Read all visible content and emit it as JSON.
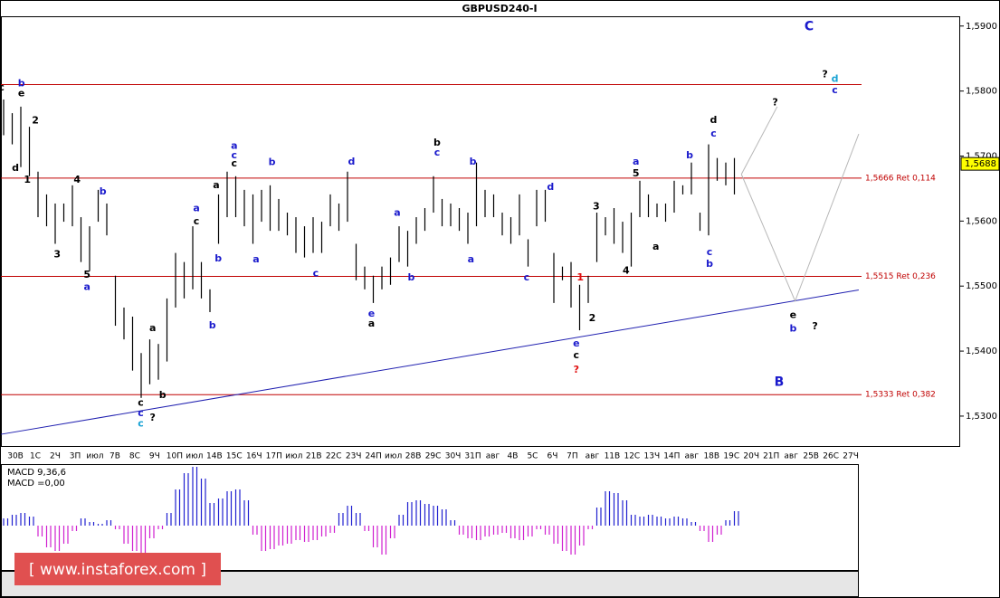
{
  "chart_data": {
    "type": "ohlc",
    "title": "GBPUSD240-I",
    "ylim": [
      1.5254,
      1.5915
    ],
    "yticks": [
      {
        "value": 1.53,
        "label": "1,5300"
      },
      {
        "value": 1.54,
        "label": "1,5400"
      },
      {
        "value": 1.55,
        "label": "1,5500"
      },
      {
        "value": 1.56,
        "label": "1,5600"
      },
      {
        "value": 1.57,
        "label": "1,5700"
      },
      {
        "value": 1.58,
        "label": "1,5800"
      },
      {
        "value": 1.59,
        "label": "1,5900"
      }
    ],
    "xlim": [
      -0.73,
      47.5
    ],
    "categories": [
      "30В",
      "1С",
      "2Ч",
      "3П",
      "июл",
      "7В",
      "8С",
      "9Ч",
      "10П",
      "июл",
      "14В",
      "15С",
      "16Ч",
      "17П",
      "июл",
      "21В",
      "22С",
      "23Ч",
      "24П",
      "июл",
      "28В",
      "29С",
      "30Ч",
      "31П",
      "авг",
      "4В",
      "5С",
      "6Ч",
      "7П",
      "авг",
      "11В",
      "12С",
      "13Ч",
      "14П",
      "авг",
      "18В",
      "19С",
      "20Ч",
      "21П",
      "авг",
      "25В",
      "26С",
      "27Ч"
    ],
    "bar_color": "#000000",
    "price_bars": [
      [
        1.5787,
        1.5732
      ],
      [
        1.5766,
        1.5718
      ],
      [
        1.5776,
        1.5683
      ],
      [
        1.5745,
        1.5669
      ],
      [
        1.5676,
        1.5606
      ],
      [
        1.5641,
        1.5592
      ],
      [
        1.5627,
        1.5565
      ],
      [
        1.5627,
        1.5599
      ],
      [
        1.5655,
        1.5592
      ],
      [
        1.5606,
        1.5537
      ],
      [
        1.5592,
        1.5523
      ],
      [
        1.5648,
        1.5599
      ],
      [
        1.5627,
        1.5578
      ],
      [
        1.5516,
        1.5439
      ],
      [
        1.5467,
        1.5418
      ],
      [
        1.5453,
        1.537
      ],
      [
        1.5397,
        1.5328
      ],
      [
        1.5418,
        1.5349
      ],
      [
        1.5411,
        1.5356
      ],
      [
        1.5481,
        1.5384
      ],
      [
        1.5551,
        1.5467
      ],
      [
        1.5537,
        1.5481
      ],
      [
        1.5592,
        1.5495
      ],
      [
        1.5537,
        1.5481
      ],
      [
        1.5495,
        1.546
      ],
      [
        1.5641,
        1.5565
      ],
      [
        1.5676,
        1.5606
      ],
      [
        1.5669,
        1.5606
      ],
      [
        1.5648,
        1.5592
      ],
      [
        1.5641,
        1.5565
      ],
      [
        1.5648,
        1.5599
      ],
      [
        1.5655,
        1.5585
      ],
      [
        1.5634,
        1.5585
      ],
      [
        1.5613,
        1.5578
      ],
      [
        1.5606,
        1.5551
      ],
      [
        1.5592,
        1.5544
      ],
      [
        1.5606,
        1.5551
      ],
      [
        1.5599,
        1.5551
      ],
      [
        1.5641,
        1.5592
      ],
      [
        1.5627,
        1.5585
      ],
      [
        1.5676,
        1.5599
      ],
      [
        1.5565,
        1.5509
      ],
      [
        1.553,
        1.5495
      ],
      [
        1.5516,
        1.5474
      ],
      [
        1.553,
        1.5495
      ],
      [
        1.5544,
        1.5502
      ],
      [
        1.5592,
        1.5537
      ],
      [
        1.5585,
        1.553
      ],
      [
        1.5606,
        1.5565
      ],
      [
        1.562,
        1.5585
      ],
      [
        1.5669,
        1.5613
      ],
      [
        1.5634,
        1.5592
      ],
      [
        1.5627,
        1.5592
      ],
      [
        1.562,
        1.5585
      ],
      [
        1.5613,
        1.5565
      ],
      [
        1.569,
        1.5592
      ],
      [
        1.5648,
        1.5606
      ],
      [
        1.5641,
        1.5606
      ],
      [
        1.5613,
        1.5578
      ],
      [
        1.5606,
        1.5565
      ],
      [
        1.5641,
        1.5578
      ],
      [
        1.5572,
        1.553
      ],
      [
        1.5648,
        1.5592
      ],
      [
        1.5648,
        1.5599
      ],
      [
        1.5551,
        1.5474
      ],
      [
        1.553,
        1.5509
      ],
      [
        1.5537,
        1.5467
      ],
      [
        1.5502,
        1.5432
      ],
      [
        1.5516,
        1.5474
      ],
      [
        1.5613,
        1.5537
      ],
      [
        1.5606,
        1.5578
      ],
      [
        1.562,
        1.5565
      ],
      [
        1.5599,
        1.5551
      ],
      [
        1.5613,
        1.553
      ],
      [
        1.5662,
        1.5606
      ],
      [
        1.5641,
        1.5606
      ],
      [
        1.5627,
        1.5606
      ],
      [
        1.5627,
        1.5599
      ],
      [
        1.5662,
        1.5613
      ],
      [
        1.5655,
        1.5641
      ],
      [
        1.569,
        1.5641
      ],
      [
        1.5613,
        1.5585
      ],
      [
        1.5718,
        1.5578
      ],
      [
        1.5697,
        1.5662
      ],
      [
        1.569,
        1.5655
      ],
      [
        1.5697,
        1.5641
      ]
    ],
    "levels": [
      {
        "value": 1.581,
        "color": "#c00000"
      },
      {
        "value": 1.5666,
        "label": "1,5666 Ret 0,114",
        "color": "#c00000"
      },
      {
        "value": 1.5515,
        "label": "1,5515 Ret 0,236",
        "color": "#c00000"
      },
      {
        "value": 1.5333,
        "label": "1,5333 Ret 0,382",
        "color": "#c00000"
      }
    ],
    "current_price": {
      "value": 1.5688,
      "label": "1,5688"
    },
    "lines": [
      {
        "color": "#2020b0",
        "points": [
          [
            -0.73,
            1.5272
          ],
          [
            42.4,
            1.5494
          ]
        ]
      },
      {
        "color": "#b8b8b8",
        "points": [
          [
            36.5,
            1.5672
          ],
          [
            38.3,
            1.5776
          ]
        ]
      },
      {
        "color": "#b8b8b8",
        "points": [
          [
            36.5,
            1.5672
          ],
          [
            39.2,
            1.5477
          ],
          [
            42.4,
            1.5734
          ]
        ]
      }
    ],
    "annotations": [
      {
        "text": "c",
        "x": -0.7,
        "y": 1.5805,
        "color": "#000000"
      },
      {
        "text": "b",
        "x": 0.3,
        "y": 1.5811,
        "color": "#1a1acc"
      },
      {
        "text": "e",
        "x": 0.3,
        "y": 1.5796,
        "color": "#000000"
      },
      {
        "text": "2",
        "x": 1.0,
        "y": 1.5754,
        "color": "#000000"
      },
      {
        "text": "d",
        "x": 0.0,
        "y": 1.5681,
        "color": "#000000"
      },
      {
        "text": "1",
        "x": 0.6,
        "y": 1.5663,
        "color": "#000000"
      },
      {
        "text": "4",
        "x": 3.1,
        "y": 1.5663,
        "color": "#000000"
      },
      {
        "text": "3",
        "x": 2.1,
        "y": 1.5548,
        "color": "#000000"
      },
      {
        "text": "b",
        "x": 4.4,
        "y": 1.5645,
        "color": "#1a1acc"
      },
      {
        "text": "5",
        "x": 3.6,
        "y": 1.5517,
        "color": "#000000"
      },
      {
        "text": "a",
        "x": 3.6,
        "y": 1.5498,
        "color": "#1a1acc"
      },
      {
        "text": "a",
        "x": 6.9,
        "y": 1.5435,
        "color": "#000000"
      },
      {
        "text": "b",
        "x": 7.4,
        "y": 1.5332,
        "color": "#000000"
      },
      {
        "text": "c",
        "x": 6.3,
        "y": 1.532,
        "color": "#000000"
      },
      {
        "text": "c",
        "x": 6.3,
        "y": 1.5304,
        "color": "#1a1acc"
      },
      {
        "text": "c",
        "x": 6.3,
        "y": 1.5288,
        "color": "#1aa3d4"
      },
      {
        "text": "?",
        "x": 6.9,
        "y": 1.5297,
        "color": "#000000"
      },
      {
        "text": "a",
        "x": 9.1,
        "y": 1.5619,
        "color": "#1a1acc"
      },
      {
        "text": "c",
        "x": 9.1,
        "y": 1.5599,
        "color": "#000000"
      },
      {
        "text": "b",
        "x": 10.2,
        "y": 1.5542,
        "color": "#1a1acc"
      },
      {
        "text": "b",
        "x": 9.9,
        "y": 1.5439,
        "color": "#1a1acc"
      },
      {
        "text": "a",
        "x": 10.1,
        "y": 1.5655,
        "color": "#000000"
      },
      {
        "text": "a",
        "x": 11.0,
        "y": 1.5715,
        "color": "#1a1acc"
      },
      {
        "text": "c",
        "x": 11.0,
        "y": 1.5701,
        "color": "#1a1acc"
      },
      {
        "text": "c",
        "x": 11.0,
        "y": 1.5688,
        "color": "#000000"
      },
      {
        "text": "b",
        "x": 12.9,
        "y": 1.569,
        "color": "#1a1acc"
      },
      {
        "text": "a",
        "x": 12.1,
        "y": 1.5541,
        "color": "#1a1acc"
      },
      {
        "text": "c",
        "x": 15.1,
        "y": 1.5519,
        "color": "#1a1acc"
      },
      {
        "text": "d",
        "x": 16.9,
        "y": 1.5691,
        "color": "#1a1acc"
      },
      {
        "text": "e",
        "x": 17.9,
        "y": 1.5457,
        "color": "#1a1acc"
      },
      {
        "text": "a",
        "x": 17.9,
        "y": 1.5442,
        "color": "#000000"
      },
      {
        "text": "a",
        "x": 19.2,
        "y": 1.5612,
        "color": "#1a1acc"
      },
      {
        "text": "b",
        "x": 19.9,
        "y": 1.5513,
        "color": "#1a1acc"
      },
      {
        "text": "b",
        "x": 21.2,
        "y": 1.572,
        "color": "#000000"
      },
      {
        "text": "c",
        "x": 21.2,
        "y": 1.5705,
        "color": "#1a1acc"
      },
      {
        "text": "b",
        "x": 23.0,
        "y": 1.5691,
        "color": "#1a1acc"
      },
      {
        "text": "a",
        "x": 22.9,
        "y": 1.5541,
        "color": "#1a1acc"
      },
      {
        "text": "d",
        "x": 26.9,
        "y": 1.5652,
        "color": "#1a1acc"
      },
      {
        "text": "c",
        "x": 25.7,
        "y": 1.5513,
        "color": "#1a1acc"
      },
      {
        "text": "1",
        "x": 28.4,
        "y": 1.5513,
        "color": "#e01010"
      },
      {
        "text": "2",
        "x": 29.0,
        "y": 1.545,
        "color": "#000000"
      },
      {
        "text": "3",
        "x": 29.2,
        "y": 1.5622,
        "color": "#000000"
      },
      {
        "text": "4",
        "x": 30.7,
        "y": 1.5523,
        "color": "#000000"
      },
      {
        "text": "5",
        "x": 31.2,
        "y": 1.5673,
        "color": "#000000"
      },
      {
        "text": "a",
        "x": 31.2,
        "y": 1.5691,
        "color": "#1a1acc"
      },
      {
        "text": "e",
        "x": 28.2,
        "y": 1.5411,
        "color": "#1a1acc"
      },
      {
        "text": "c",
        "x": 28.2,
        "y": 1.5393,
        "color": "#000000"
      },
      {
        "text": "?",
        "x": 28.2,
        "y": 1.5371,
        "color": "#e01010"
      },
      {
        "text": "a",
        "x": 32.2,
        "y": 1.556,
        "color": "#000000"
      },
      {
        "text": "b",
        "x": 33.9,
        "y": 1.5701,
        "color": "#1a1acc"
      },
      {
        "text": "c",
        "x": 34.9,
        "y": 1.5552,
        "color": "#1a1acc"
      },
      {
        "text": "b",
        "x": 34.9,
        "y": 1.5534,
        "color": "#1a1acc"
      },
      {
        "text": "d",
        "x": 35.1,
        "y": 1.5755,
        "color": "#000000"
      },
      {
        "text": "c",
        "x": 35.1,
        "y": 1.5734,
        "color": "#1a1acc"
      },
      {
        "text": "?",
        "x": 38.2,
        "y": 1.5782,
        "color": "#000000"
      },
      {
        "text": "C",
        "x": 39.9,
        "y": 1.5899,
        "color": "#1a1acc",
        "large": true
      },
      {
        "text": "?",
        "x": 40.7,
        "y": 1.5825,
        "color": "#000000"
      },
      {
        "text": "d",
        "x": 41.2,
        "y": 1.5818,
        "color": "#1aa3d4"
      },
      {
        "text": "c",
        "x": 41.2,
        "y": 1.5801,
        "color": "#1a1acc"
      },
      {
        "text": "e",
        "x": 39.1,
        "y": 1.5455,
        "color": "#000000"
      },
      {
        "text": "b",
        "x": 39.1,
        "y": 1.5434,
        "color": "#1a1acc"
      },
      {
        "text": "?",
        "x": 40.2,
        "y": 1.5438,
        "color": "#000000"
      },
      {
        "text": "B",
        "x": 38.4,
        "y": 1.5352,
        "color": "#1a1acc",
        "large": true
      }
    ],
    "macd": {
      "title": "MACD 9,36,6",
      "value_label": "MACD =0,00",
      "ylim": [
        -49,
        68
      ],
      "positive_color": "#2020d0",
      "negative_color": "#d020d0",
      "values": [
        8,
        12,
        14,
        10,
        -12,
        -24,
        -28,
        -20,
        -6,
        8,
        4,
        2,
        6,
        -4,
        -20,
        -28,
        -30,
        -14,
        -4,
        14,
        40,
        58,
        65,
        52,
        25,
        30,
        38,
        40,
        28,
        -10,
        -28,
        -26,
        -22,
        -20,
        -16,
        -18,
        -16,
        -12,
        -8,
        14,
        22,
        14,
        -6,
        -24,
        -32,
        -14,
        12,
        26,
        28,
        24,
        22,
        18,
        6,
        -10,
        -14,
        -16,
        -12,
        -10,
        -8,
        -14,
        -16,
        -12,
        -4,
        -10,
        -20,
        -28,
        -32,
        -22,
        -4,
        20,
        38,
        36,
        28,
        12,
        10,
        12,
        10,
        8,
        10,
        8,
        4,
        -6,
        -18,
        -10,
        6,
        16
      ]
    },
    "watermark": "[ www.instaforex.com ]"
  }
}
